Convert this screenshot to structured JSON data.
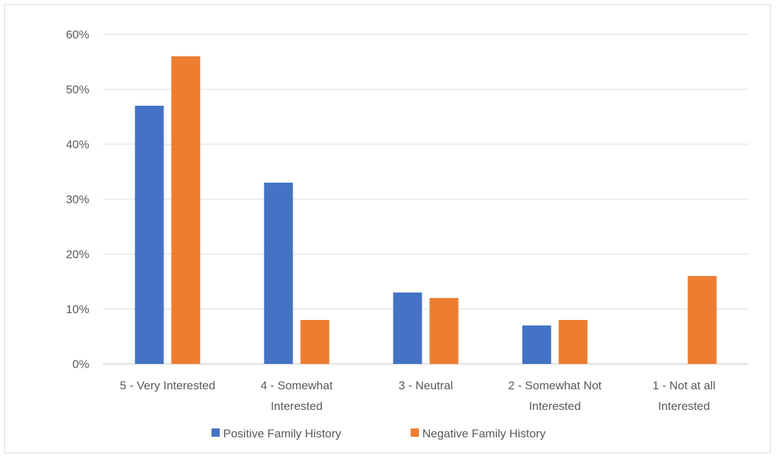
{
  "chart_data": {
    "type": "bar",
    "categories": [
      [
        "5 - Very Interested"
      ],
      [
        "4 - Somewhat",
        "Interested"
      ],
      [
        "3 - Neutral"
      ],
      [
        "2 - Somewhat Not",
        "Interested"
      ],
      [
        "1 - Not at all",
        "Interested"
      ]
    ],
    "series": [
      {
        "name": "Positive Family History",
        "color": "#4472c4",
        "values": [
          47,
          33,
          13,
          7,
          0
        ]
      },
      {
        "name": "Negative Family History",
        "color": "#ed7d31",
        "values": [
          56,
          8,
          12,
          8,
          16
        ]
      }
    ],
    "ylim": [
      0,
      60
    ],
    "yticks": [
      0,
      10,
      20,
      30,
      40,
      50,
      60
    ],
    "ytick_labels": [
      "0%",
      "10%",
      "20%",
      "30%",
      "40%",
      "50%",
      "60%"
    ],
    "grid": true,
    "legend_position": "bottom"
  }
}
